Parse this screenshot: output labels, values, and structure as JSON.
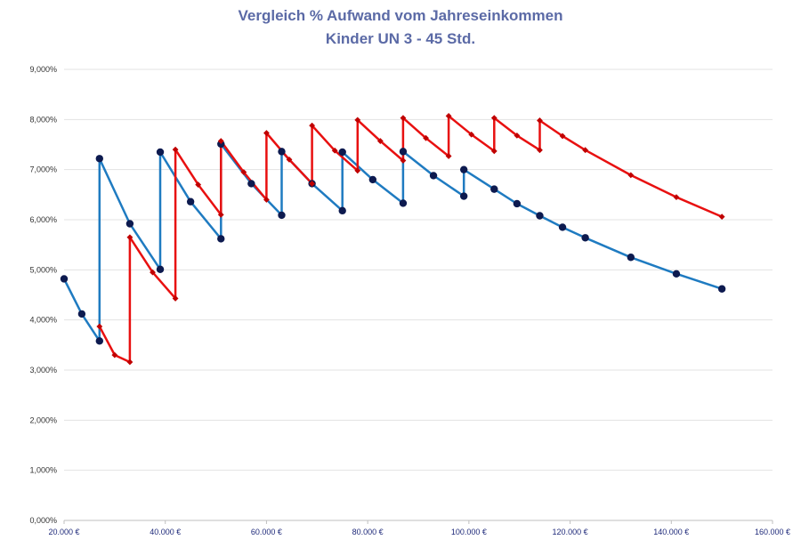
{
  "chart_data": {
    "type": "line",
    "title": "Vergleich % Aufwand vom Jahreseinkommen",
    "subtitle": "Kinder UN 3 - 45 Std.",
    "xlabel": "",
    "ylabel": "",
    "xlim": [
      20000,
      160000
    ],
    "ylim": [
      0,
      9
    ],
    "x_ticks": [
      20000,
      40000,
      60000,
      80000,
      100000,
      120000,
      140000,
      160000
    ],
    "x_tick_labels": [
      "20.000 €",
      "40.000 €",
      "60.000 €",
      "80.000 €",
      "100.000 €",
      "120.000 €",
      "140.000 €",
      "160.000 €"
    ],
    "y_ticks": [
      0,
      1,
      2,
      3,
      4,
      5,
      6,
      7,
      8,
      9
    ],
    "y_tick_labels": [
      "0,000%",
      "1,000%",
      "2,000%",
      "3,000%",
      "4,000%",
      "5,000%",
      "6,000%",
      "7,000%",
      "8,000%",
      "9,000%"
    ],
    "grid": true,
    "legend": "none",
    "series": [
      {
        "color": "#1f7bc1",
        "marker_color": "#0d1a4f",
        "marker": "circle",
        "points": [
          [
            20000,
            4.82
          ],
          [
            23500,
            4.12
          ],
          [
            27000,
            3.58
          ],
          [
            27000,
            7.22
          ],
          [
            33000,
            5.92
          ],
          [
            39000,
            5.01
          ],
          [
            39000,
            7.35
          ],
          [
            45000,
            6.36
          ],
          [
            51000,
            5.62
          ],
          [
            51000,
            7.51
          ],
          [
            57000,
            6.72
          ],
          [
            63000,
            6.09
          ],
          [
            63000,
            7.36
          ],
          [
            69000,
            6.72
          ],
          [
            75000,
            6.18
          ],
          [
            75000,
            7.35
          ],
          [
            81000,
            6.8
          ],
          [
            87000,
            6.33
          ],
          [
            87000,
            7.36
          ],
          [
            93000,
            6.88
          ],
          [
            99000,
            6.47
          ],
          [
            99000,
            7.0
          ],
          [
            105000,
            6.61
          ],
          [
            109500,
            6.32
          ],
          [
            114000,
            6.08
          ],
          [
            118500,
            5.85
          ],
          [
            123000,
            5.64
          ],
          [
            132000,
            5.25
          ],
          [
            141000,
            4.92
          ],
          [
            150000,
            4.62
          ]
        ]
      },
      {
        "color": "#e81010",
        "marker_color": "#c00000",
        "marker": "diamond",
        "points": [
          [
            27000,
            3.87
          ],
          [
            30000,
            3.3
          ],
          [
            33000,
            3.16
          ],
          [
            33000,
            5.65
          ],
          [
            37500,
            4.95
          ],
          [
            42000,
            4.43
          ],
          [
            42000,
            7.4
          ],
          [
            46500,
            6.7
          ],
          [
            51000,
            6.1
          ],
          [
            51000,
            7.57
          ],
          [
            55500,
            6.95
          ],
          [
            60000,
            6.4
          ],
          [
            60000,
            7.73
          ],
          [
            64500,
            7.2
          ],
          [
            69000,
            6.72
          ],
          [
            69000,
            7.88
          ],
          [
            73500,
            7.38
          ],
          [
            78000,
            6.98
          ],
          [
            78000,
            7.99
          ],
          [
            82500,
            7.57
          ],
          [
            87000,
            7.18
          ],
          [
            87000,
            8.03
          ],
          [
            91500,
            7.63
          ],
          [
            96000,
            7.27
          ],
          [
            96000,
            8.07
          ],
          [
            100500,
            7.7
          ],
          [
            105000,
            7.37
          ],
          [
            105000,
            8.03
          ],
          [
            109500,
            7.68
          ],
          [
            114000,
            7.39
          ],
          [
            114000,
            7.98
          ],
          [
            118500,
            7.67
          ],
          [
            123000,
            7.39
          ],
          [
            132000,
            6.89
          ],
          [
            141000,
            6.45
          ],
          [
            150000,
            6.06
          ]
        ]
      }
    ]
  }
}
